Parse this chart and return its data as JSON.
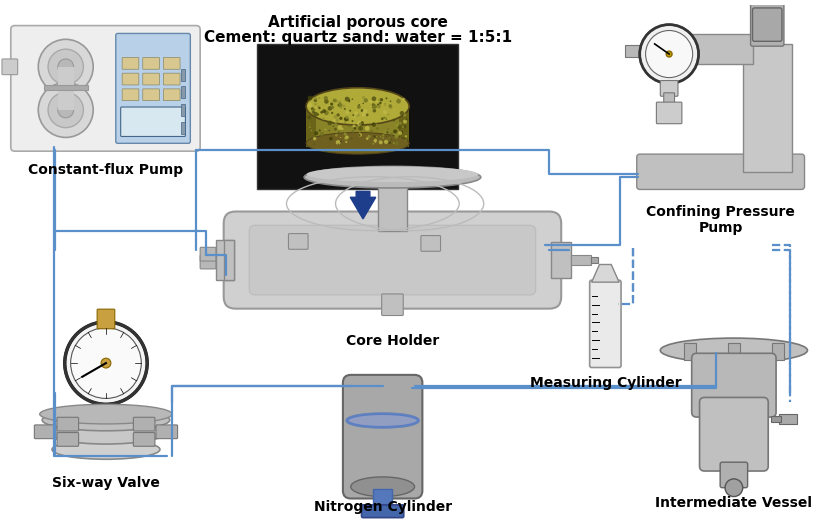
{
  "title_line1": "Artificial porous core",
  "title_line2": "Cement: quartz sand: water = 1:5:1",
  "label_pump": "Constant-flux Pump",
  "label_core_holder": "Core Holder",
  "label_six_way": "Six-way Valve",
  "label_nitrogen": "Nitrogen Cylinder",
  "label_measuring": "Measuring Cylinder",
  "label_confining": "Confining Pressure\nPump",
  "label_intermediate": "Intermediate Vessel",
  "bg_color": "#ffffff",
  "line_color": "#5b8fc9",
  "equip_color": "#c8c8c8",
  "equip_light": "#d8d8d8",
  "equip_dark": "#a8a8a8",
  "pump_blue": "#a8c8e8",
  "pump_blue_dark": "#7898b8",
  "pump_button": "#d8c890",
  "gold_color": "#c8a040",
  "label_fontsize": 10,
  "title_fontsize": 11,
  "lw_main": 1.6
}
